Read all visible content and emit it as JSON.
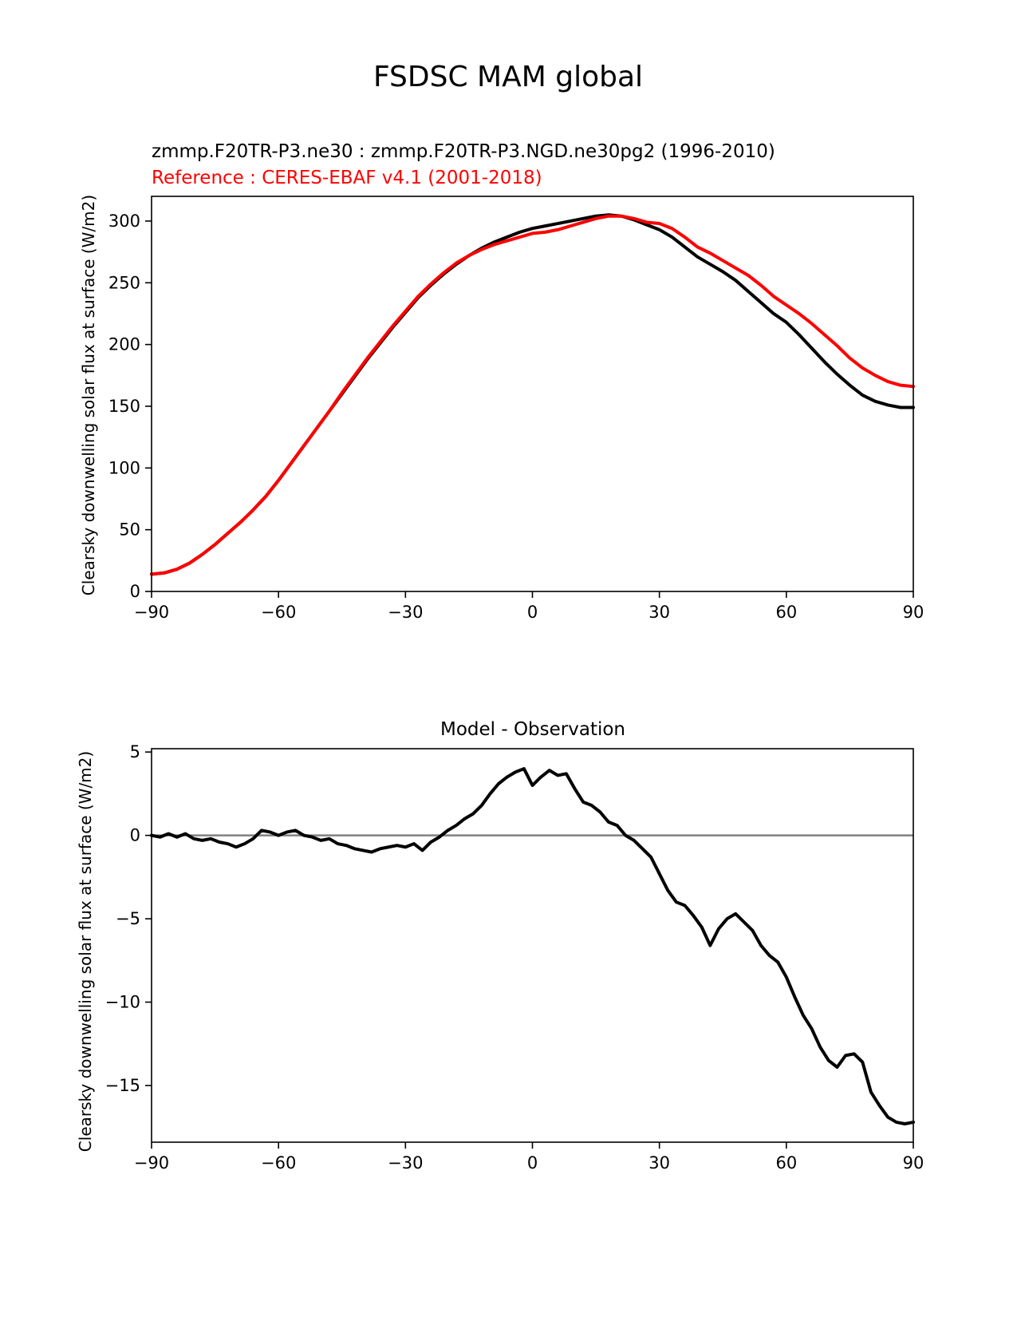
{
  "figure": {
    "suptitle": "FSDSC MAM global",
    "colors": {
      "test": "#000000",
      "ref": "#ff0000",
      "zero_line": "#808080",
      "axes": "#000000"
    }
  },
  "chart_data": [
    {
      "type": "line",
      "title_test": "zmmp.F20TR-P3.ne30 : zmmp.F20TR-P3.NGD.ne30pg2 (1996-2010)",
      "title_ref": "Reference : CERES-EBAF v4.1 (2001-2018)",
      "xlabel": "",
      "ylabel": "Clearsky downwelling solar flux at surface (W/m2)",
      "xlim": [
        -90,
        90
      ],
      "ylim": [
        0,
        320
      ],
      "xticks": [
        -90,
        -60,
        -30,
        0,
        30,
        60,
        90
      ],
      "xtick_labels": [
        "−90",
        "−60",
        "−30",
        "0",
        "30",
        "60",
        "90"
      ],
      "yticks": [
        0,
        50,
        100,
        150,
        200,
        250,
        300
      ],
      "ytick_labels": [
        "0",
        "50",
        "100",
        "150",
        "200",
        "250",
        "300"
      ],
      "series": [
        {
          "name": "zmmp.F20TR-P3.ne30 : zmmp.F20TR-P3.NGD.ne30pg2 (1996-2010)",
          "color": "#000000",
          "x": [
            -90,
            -87,
            -84,
            -81,
            -78,
            -75,
            -72,
            -69,
            -66,
            -63,
            -60,
            -57,
            -54,
            -51,
            -48,
            -45,
            -42,
            -39,
            -36,
            -33,
            -30,
            -27,
            -24,
            -21,
            -18,
            -15,
            -12,
            -9,
            -6,
            -3,
            0,
            3,
            6,
            9,
            12,
            15,
            18,
            21,
            24,
            27,
            30,
            33,
            36,
            39,
            42,
            45,
            48,
            51,
            54,
            57,
            60,
            63,
            66,
            69,
            72,
            75,
            78,
            81,
            84,
            87,
            90
          ],
          "y": [
            14,
            15,
            18,
            23,
            30,
            38,
            47,
            56,
            66,
            77,
            90,
            104,
            118,
            132,
            146,
            160,
            174,
            188,
            201,
            214,
            226,
            238,
            248,
            257,
            265,
            272,
            278,
            283,
            287,
            291,
            294,
            296,
            298,
            300,
            302,
            304,
            305,
            304,
            301,
            297,
            293,
            287,
            279,
            271,
            265,
            259,
            252,
            243,
            234,
            225,
            218,
            208,
            197,
            186,
            176,
            167,
            159,
            154,
            151,
            149,
            149
          ]
        },
        {
          "name": "Reference : CERES-EBAF v4.1 (2001-2018)",
          "color": "#ff0000",
          "x": [
            -90,
            -87,
            -84,
            -81,
            -78,
            -75,
            -72,
            -69,
            -66,
            -63,
            -60,
            -57,
            -54,
            -51,
            -48,
            -45,
            -42,
            -39,
            -36,
            -33,
            -30,
            -27,
            -24,
            -21,
            -18,
            -15,
            -12,
            -9,
            -6,
            -3,
            0,
            3,
            6,
            9,
            12,
            15,
            18,
            21,
            24,
            27,
            30,
            33,
            36,
            39,
            42,
            45,
            48,
            51,
            54,
            57,
            60,
            63,
            66,
            69,
            72,
            75,
            78,
            81,
            84,
            87,
            90
          ],
          "y": [
            14,
            15,
            18,
            23,
            30,
            38,
            47,
            56,
            66,
            77,
            90,
            104,
            118,
            132,
            146,
            161,
            175,
            189,
            202,
            215,
            227,
            239,
            249,
            258,
            266,
            272,
            277,
            281,
            284,
            287,
            290,
            291,
            293,
            296,
            299,
            302,
            304,
            304,
            302,
            299,
            298,
            294,
            287,
            279,
            274,
            268,
            262,
            256,
            248,
            239,
            232,
            225,
            217,
            208,
            199,
            189,
            181,
            175,
            170,
            167,
            166
          ]
        }
      ]
    },
    {
      "type": "line",
      "title": "Model - Observation",
      "xlabel": "",
      "ylabel": "Clearsky downwelling solar flux at surface (W/m2)",
      "xlim": [
        -90,
        90
      ],
      "ylim": [
        -18.4,
        5.2
      ],
      "xticks": [
        -90,
        -60,
        -30,
        0,
        30,
        60,
        90
      ],
      "xtick_labels": [
        "−90",
        "−60",
        "−30",
        "0",
        "30",
        "60",
        "90"
      ],
      "yticks": [
        5,
        0,
        -5,
        -10,
        -15
      ],
      "ytick_labels": [
        "5",
        "0",
        "−5",
        "−10",
        "−15"
      ],
      "zero_line": 0,
      "series": [
        {
          "name": "Model - Observation",
          "color": "#000000",
          "x": [
            -90,
            -88,
            -86,
            -84,
            -82,
            -80,
            -78,
            -76,
            -74,
            -72,
            -70,
            -68,
            -66,
            -64,
            -62,
            -60,
            -58,
            -56,
            -54,
            -52,
            -50,
            -48,
            -46,
            -44,
            -42,
            -40,
            -38,
            -36,
            -34,
            -32,
            -30,
            -28,
            -26,
            -24,
            -22,
            -20,
            -18,
            -16,
            -14,
            -12,
            -10,
            -8,
            -6,
            -4,
            -2,
            0,
            2,
            4,
            6,
            8,
            10,
            12,
            14,
            16,
            18,
            20,
            22,
            24,
            26,
            28,
            30,
            32,
            34,
            36,
            38,
            40,
            42,
            44,
            46,
            48,
            50,
            52,
            54,
            56,
            58,
            60,
            62,
            64,
            66,
            68,
            70,
            72,
            74,
            76,
            78,
            80,
            82,
            84,
            86,
            88,
            90
          ],
          "y": [
            0.0,
            -0.1,
            0.1,
            -0.1,
            0.1,
            -0.2,
            -0.3,
            -0.2,
            -0.4,
            -0.5,
            -0.7,
            -0.5,
            -0.2,
            0.3,
            0.2,
            0.0,
            0.2,
            0.3,
            0.0,
            -0.1,
            -0.3,
            -0.2,
            -0.5,
            -0.6,
            -0.8,
            -0.9,
            -1.0,
            -0.8,
            -0.7,
            -0.6,
            -0.7,
            -0.5,
            -0.9,
            -0.4,
            -0.1,
            0.3,
            0.6,
            1.0,
            1.3,
            1.8,
            2.5,
            3.1,
            3.5,
            3.8,
            4.0,
            3.0,
            3.5,
            3.9,
            3.6,
            3.7,
            2.8,
            2.0,
            1.8,
            1.4,
            0.8,
            0.6,
            0.0,
            -0.3,
            -0.8,
            -1.3,
            -2.3,
            -3.3,
            -4.0,
            -4.2,
            -4.8,
            -5.5,
            -6.6,
            -5.6,
            -5.0,
            -4.7,
            -5.2,
            -5.7,
            -6.6,
            -7.2,
            -7.6,
            -8.5,
            -9.7,
            -10.8,
            -11.6,
            -12.7,
            -13.5,
            -13.9,
            -13.2,
            -13.1,
            -13.6,
            -15.4,
            -16.2,
            -16.9,
            -17.2,
            -17.3,
            -17.2
          ]
        }
      ]
    }
  ]
}
